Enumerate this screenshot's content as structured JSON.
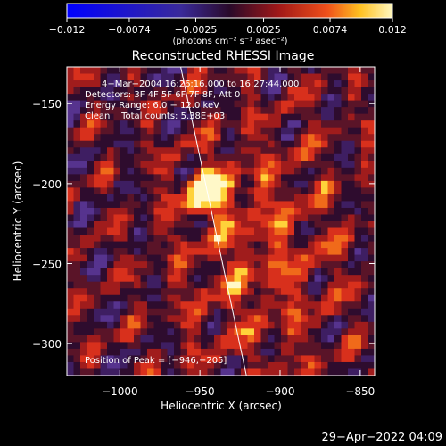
{
  "chart_data": {
    "type": "heatmap",
    "title": "Reconstructed RHESSI Image",
    "xlabel": "Heliocentric X (arcsec)",
    "ylabel": "Heliocentric Y (arcsec)",
    "xlim": [
      -1033,
      -841
    ],
    "ylim": [
      -320,
      -127
    ],
    "x_ticks": [
      -1000,
      -950,
      -900,
      -850
    ],
    "x_tick_labels": [
      "−1000",
      "−950",
      "−900",
      "−850"
    ],
    "y_ticks": [
      -150,
      -200,
      -250,
      -300
    ],
    "y_tick_labels": [
      "−150",
      "−200",
      "−250",
      "−300"
    ],
    "colorbar": {
      "min": -0.012,
      "max": 0.012,
      "ticks": [
        -0.012,
        -0.0074,
        -0.0025,
        0.0025,
        0.0074,
        0.012
      ],
      "tick_labels": [
        "−0.012",
        "−0.0074",
        "−0.0025",
        "0.0025",
        "0.0074",
        "0.012"
      ],
      "units": "(photons cm⁻² s⁻¹ asec⁻²)"
    },
    "annotations": [
      "4−Mar−2004 16:26:16.000 to 16:27:44.000",
      "Detectors: 3F 4F 5F 6F 7F 8F, Att 0",
      "Energy Range: 6.0 − 12.0 keV",
      "Clean    Total counts: 5.38E+03"
    ],
    "peak_label": "Position of Peak = [−946,−205]",
    "peak": [
      -946,
      -205
    ],
    "limb_line": [
      [
        -962,
        -127
      ],
      [
        -921,
        -320
      ]
    ],
    "colors": {
      "background": "#000000",
      "axes": "#ffffff",
      "peak": "#fffbd0",
      "positive": "#e0281e",
      "negative": "#5a2a8a"
    }
  },
  "footer_date": "29−Apr−2022 04:09"
}
